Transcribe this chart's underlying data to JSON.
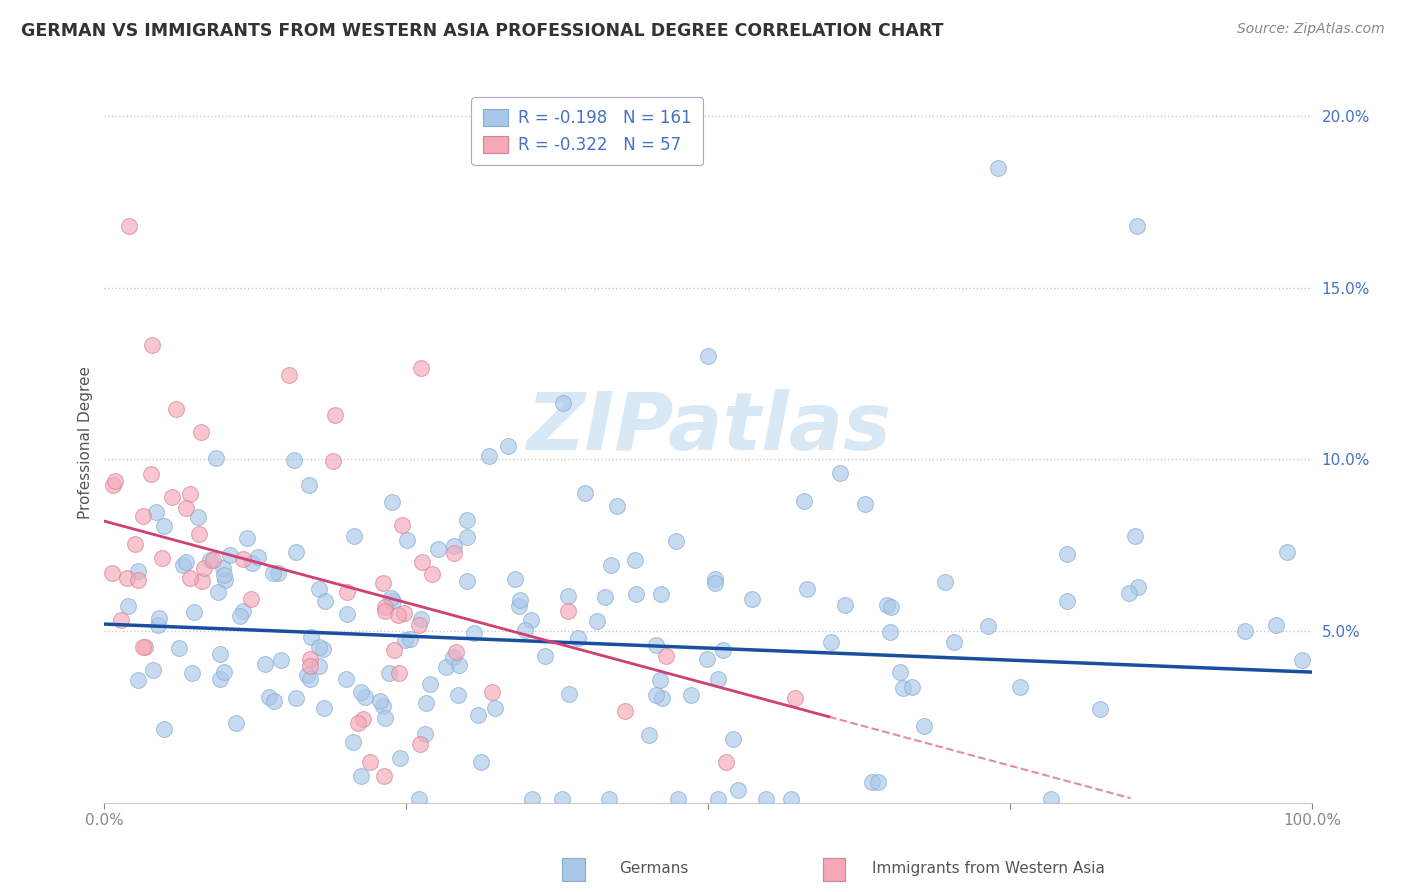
{
  "title": "GERMAN VS IMMIGRANTS FROM WESTERN ASIA PROFESSIONAL DEGREE CORRELATION CHART",
  "source": "Source: ZipAtlas.com",
  "ylabel": "Professional Degree",
  "legend_german": "Germans",
  "legend_immigrant": "Immigrants from Western Asia",
  "r_german": -0.198,
  "n_german": 161,
  "r_immigrant": -0.322,
  "n_immigrant": 57,
  "xlim": [
    0.0,
    1.0
  ],
  "ylim": [
    0.0,
    0.21
  ],
  "color_german": "#a8c8e8",
  "color_immigrant": "#f4a8b8",
  "line_color_german": "#1a4fa0",
  "line_color_immigrant": "#d04070",
  "watermark_color": "#d8e8f4",
  "background_color": "#ffffff",
  "grid_color": "#cccccc",
  "title_color": "#333333",
  "source_color": "#888888",
  "label_color": "#555555",
  "tick_color_y": "#4472c4",
  "tick_color_x": "#666666",
  "german_intercept": 0.052,
  "german_slope": -0.014,
  "immigrant_intercept": 0.082,
  "immigrant_slope": -0.095,
  "seed": 42
}
